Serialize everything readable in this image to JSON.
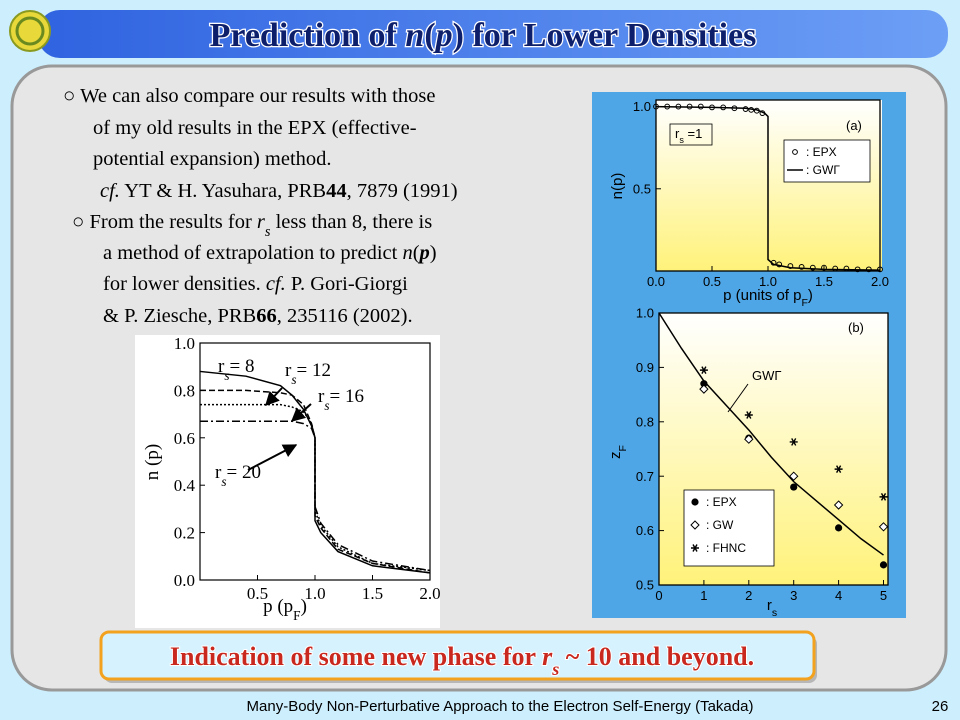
{
  "header": {
    "title": {
      "runs": [
        {
          "t": "Prediction of "
        },
        {
          "t": "n",
          "s": "i"
        },
        {
          "t": "("
        },
        {
          "t": "p",
          "s": "i"
        },
        {
          "t": ") for Lower Densities"
        }
      ]
    }
  },
  "body": {
    "lines": [
      {
        "runs": [
          {
            "t": "○ We can also compare our results with those"
          }
        ]
      },
      {
        "runs": [
          {
            "t": "of my old results in the EPX (effective-"
          }
        ]
      },
      {
        "runs": [
          {
            "t": "potential expansion) method."
          }
        ]
      },
      {
        "runs": [
          {
            "t": "cf.",
            "s": "i"
          },
          {
            "t": " YT & H. Yasuhara, PRB"
          },
          {
            "t": "44",
            "s": "b"
          },
          {
            "t": ", 7879 (1991)"
          }
        ]
      },
      {
        "runs": [
          {
            "t": "○ From the results for "
          },
          {
            "t": "r",
            "s": "i"
          },
          {
            "t": "s",
            "s": "isub"
          },
          {
            "t": " less than 8, there is"
          }
        ]
      },
      {
        "runs": [
          {
            "t": "a method of extrapolation to predict "
          },
          {
            "t": "n",
            "s": "i"
          },
          {
            "t": "("
          },
          {
            "t": "p",
            "s": "bi"
          },
          {
            "t": ")"
          }
        ]
      },
      {
        "runs": [
          {
            "t": "for lower densities.    "
          },
          {
            "t": "cf.",
            "s": "i"
          },
          {
            "t": " P. Gori-Giorgi"
          }
        ]
      },
      {
        "runs": [
          {
            "t": "& P. Ziesche, PRB"
          },
          {
            "t": "66",
            "s": "b"
          },
          {
            "t": ", 235116 (2002)."
          }
        ]
      }
    ]
  },
  "figures": [
    {
      "type": "line",
      "xlabel": {
        "runs": [
          {
            "t": "p (p"
          },
          {
            "t": "F",
            "s": "sub"
          },
          {
            "t": ")"
          }
        ]
      },
      "ylabel": {
        "runs": [
          {
            "t": "n (p)"
          }
        ]
      },
      "xlim": [
        0,
        2
      ],
      "ylim": [
        0,
        1
      ],
      "xticks": [
        0.5,
        {
          "value": 1,
          "label": "1.0"
        },
        1.5,
        {
          "value": 2,
          "label": "2.0"
        }
      ],
      "yticks": [
        {
          "value": 0,
          "label": "0.0"
        },
        0.2,
        0.4,
        0.6,
        0.8,
        {
          "value": 1,
          "label": "1.0"
        }
      ],
      "x": [
        0,
        0.4,
        0.7,
        0.8,
        0.9,
        0.97,
        1.0,
        1.0,
        1.05,
        1.2,
        1.5,
        2.0
      ],
      "series": [
        {
          "line": "solid",
          "color": "#000000",
          "values": [
            0.88,
            0.86,
            0.82,
            0.78,
            0.72,
            0.65,
            0.6,
            0.25,
            0.2,
            0.12,
            0.06,
            0.03
          ]
        },
        {
          "line": "dashed",
          "color": "#000000",
          "values": [
            0.8,
            0.8,
            0.79,
            0.78,
            0.74,
            0.66,
            0.6,
            0.27,
            0.22,
            0.13,
            0.07,
            0.03
          ]
        },
        {
          "line": "dotted",
          "color": "#000000",
          "values": [
            0.74,
            0.74,
            0.74,
            0.73,
            0.71,
            0.66,
            0.6,
            0.29,
            0.23,
            0.14,
            0.07,
            0.04
          ]
        },
        {
          "line": "dashdot",
          "color": "#000000",
          "values": [
            0.67,
            0.67,
            0.67,
            0.67,
            0.66,
            0.64,
            0.6,
            0.31,
            0.24,
            0.15,
            0.08,
            0.04
          ]
        }
      ],
      "annotations": [
        {
          "runs": [
            {
              "t": "r"
            },
            {
              "t": "s",
              "s": "isub"
            },
            {
              "t": "= 8"
            }
          ]
        },
        {
          "runs": [
            {
              "t": "r"
            },
            {
              "t": "s",
              "s": "isub"
            },
            {
              "t": "= 12"
            }
          ]
        },
        {
          "runs": [
            {
              "t": "r"
            },
            {
              "t": "s",
              "s": "isub"
            },
            {
              "t": "= 16"
            }
          ]
        },
        {
          "runs": [
            {
              "t": "r"
            },
            {
              "t": "s",
              "s": "isub"
            },
            {
              "t": "= 20"
            }
          ]
        }
      ]
    },
    {
      "type": "line",
      "xlabel": {
        "runs": [
          {
            "t": "p (units of p"
          },
          {
            "t": "F",
            "s": "sub"
          },
          {
            "t": ")"
          }
        ]
      },
      "ylabel": {
        "runs": [
          {
            "t": "n(p)"
          }
        ]
      },
      "xlim": [
        0,
        2
      ],
      "ylim": [
        0,
        1.04
      ],
      "xticks": [
        {
          "value": 0,
          "label": "0.0"
        },
        0.5,
        {
          "value": 1,
          "label": "1.0"
        },
        1.5,
        {
          "value": 2,
          "label": "2.0"
        }
      ],
      "yticks": [
        0.5,
        {
          "value": 1,
          "label": "1.0"
        }
      ],
      "series": [
        {
          "name": ": EPX",
          "marker": "open-circle",
          "color": "#000000",
          "x": [
            0,
            0.1,
            0.2,
            0.3,
            0.4,
            0.5,
            0.6,
            0.7,
            0.8,
            0.85,
            0.9,
            0.95,
            1.05,
            1.1,
            1.2,
            1.3,
            1.4,
            1.5,
            1.6,
            1.7,
            1.8,
            1.9,
            2.0
          ],
          "values": [
            1.0,
            1.0,
            1.0,
            1.0,
            1.0,
            0.995,
            0.995,
            0.99,
            0.985,
            0.98,
            0.975,
            0.96,
            0.05,
            0.04,
            0.03,
            0.025,
            0.02,
            0.02,
            0.015,
            0.015,
            0.01,
            0.01,
            0.01
          ]
        },
        {
          "name": ": GWΓ",
          "line": "solid",
          "color": "#000000",
          "x": [
            0,
            0.5,
            0.8,
            0.9,
            0.97,
            1.0,
            1.0,
            1.05,
            1.2,
            1.5,
            2.0
          ],
          "values": [
            1.0,
            0.995,
            0.99,
            0.98,
            0.96,
            0.94,
            0.07,
            0.04,
            0.02,
            0.01,
            0.005
          ]
        }
      ],
      "annotations": [
        {
          "runs": [
            {
              "t": "r"
            },
            {
              "t": "s",
              "s": "sub"
            },
            {
              "t": " =1"
            }
          ]
        },
        {
          "runs": [
            {
              "t": "(a)"
            }
          ]
        }
      ]
    },
    {
      "type": "line",
      "xlabel": {
        "runs": [
          {
            "t": "r"
          },
          {
            "t": "s",
            "s": "sub"
          }
        ]
      },
      "ylabel": {
        "runs": [
          {
            "t": "z"
          },
          {
            "t": "F",
            "s": "sub"
          }
        ]
      },
      "xlim": [
        0,
        5.1
      ],
      "ylim": [
        0.5,
        1.0
      ],
      "xticks": [
        0,
        1,
        2,
        3,
        4,
        5
      ],
      "yticks": [
        0.5,
        0.6,
        0.7,
        0.8,
        0.9,
        {
          "value": 1,
          "label": "1.0"
        }
      ],
      "series": [
        {
          "line": "solid",
          "color": "#000000",
          "x": [
            0,
            0.5,
            1,
            1.5,
            2,
            2.5,
            3,
            3.5,
            4,
            4.5,
            5
          ],
          "values": [
            1.0,
            0.935,
            0.875,
            0.83,
            0.785,
            0.735,
            0.69,
            0.655,
            0.62,
            0.585,
            0.555
          ]
        },
        {
          "name": ": EPX",
          "marker": "filled-circle",
          "color": "#000000",
          "x": [
            1,
            2,
            3,
            4,
            5
          ],
          "values": [
            0.87,
            0.77,
            0.68,
            0.605,
            0.537
          ]
        },
        {
          "name": ": GW",
          "marker": "open-diamond",
          "color": "#000000",
          "x": [
            1,
            2,
            3,
            4,
            5
          ],
          "values": [
            0.86,
            0.768,
            0.7,
            0.647,
            0.607
          ]
        },
        {
          "name": ": FHNC",
          "marker": "star",
          "color": "#000000",
          "x": [
            1,
            2,
            3,
            4,
            5
          ],
          "values": [
            0.895,
            0.8125,
            0.763,
            0.713,
            0.662
          ]
        }
      ],
      "annotations": [
        {
          "runs": [
            {
              "t": "(b)"
            }
          ]
        },
        {
          "runs": [
            {
              "t": "GWΓ"
            }
          ]
        }
      ]
    }
  ],
  "callout": {
    "runs": [
      {
        "t": "Indication of some new phase for "
      },
      {
        "t": "r",
        "s": "i"
      },
      {
        "t": "s",
        "s": "isub"
      },
      {
        "t": " ~ 10 and beyond."
      }
    ]
  },
  "footer": {
    "text": "Many-Body Non-Perturbative Approach to the Electron Self-Energy (Takada)",
    "page": "26"
  }
}
